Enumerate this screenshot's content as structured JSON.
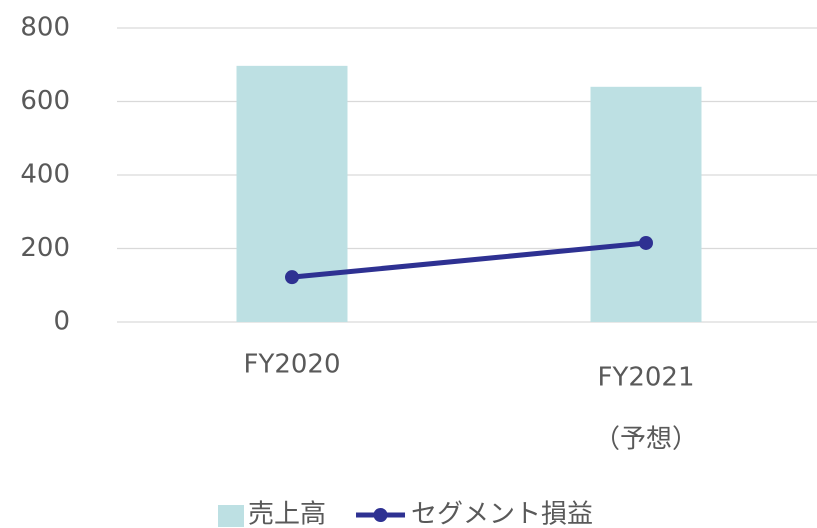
{
  "chart_data": {
    "type": "bar",
    "categories": [
      [
        "FY2020"
      ],
      [
        "FY2021",
        "（予想）"
      ]
    ],
    "series": [
      {
        "name": "売上高",
        "type": "bar",
        "color": "#bde0e3",
        "values": [
          697,
          640
        ]
      },
      {
        "name": "セグメント損益",
        "type": "line",
        "color": "#2e3192",
        "values": [
          122,
          215
        ]
      }
    ],
    "ylim": [
      0,
      800
    ],
    "yticks": [
      0,
      200,
      400,
      600,
      800
    ],
    "grid": true,
    "legend": "bottom"
  }
}
